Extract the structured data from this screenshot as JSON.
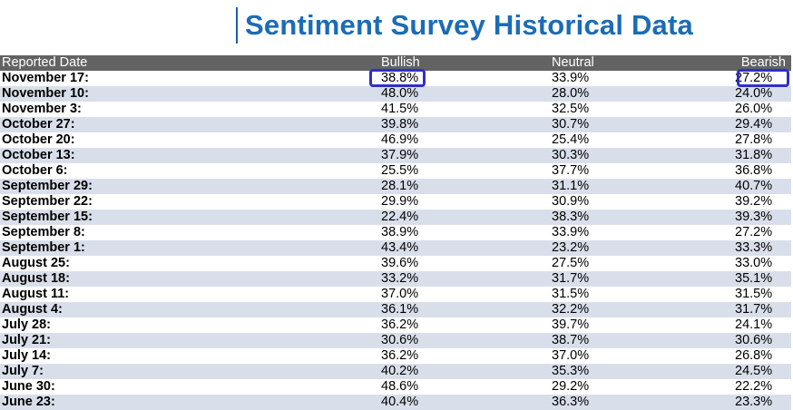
{
  "title": "Sentiment Survey Historical Data",
  "colors": {
    "title": "#1b6cb5",
    "header_bg": "#636363",
    "stripe": "#d9dfea",
    "highlight": "#3030c8"
  },
  "table": {
    "headers": [
      "Reported Date",
      "Bullish",
      "Neutral",
      "Bearish"
    ],
    "rows": [
      [
        "November 17:",
        "38.8%",
        "33.9%",
        "27.2%"
      ],
      [
        "November 10:",
        "48.0%",
        "28.0%",
        "24.0%"
      ],
      [
        "November 3:",
        "41.5%",
        "32.5%",
        "26.0%"
      ],
      [
        "October 27:",
        "39.8%",
        "30.7%",
        "29.4%"
      ],
      [
        "October 20:",
        "46.9%",
        "25.4%",
        "27.8%"
      ],
      [
        "October 13:",
        "37.9%",
        "30.3%",
        "31.8%"
      ],
      [
        "October 6:",
        "25.5%",
        "37.7%",
        "36.8%"
      ],
      [
        "September 29:",
        "28.1%",
        "31.1%",
        "40.7%"
      ],
      [
        "September 22:",
        "29.9%",
        "30.9%",
        "39.2%"
      ],
      [
        "September 15:",
        "22.4%",
        "38.3%",
        "39.3%"
      ],
      [
        "September 8:",
        "38.9%",
        "33.9%",
        "27.2%"
      ],
      [
        "September 1:",
        "43.4%",
        "23.2%",
        "33.3%"
      ],
      [
        "August 25:",
        "39.6%",
        "27.5%",
        "33.0%"
      ],
      [
        "August 18:",
        "33.2%",
        "31.7%",
        "35.1%"
      ],
      [
        "August 11:",
        "37.0%",
        "31.5%",
        "31.5%"
      ],
      [
        "August 4:",
        "36.1%",
        "32.2%",
        "31.7%"
      ],
      [
        "July 28:",
        "36.2%",
        "39.7%",
        "24.1%"
      ],
      [
        "July 21:",
        "30.6%",
        "38.7%",
        "30.6%"
      ],
      [
        "July 14:",
        "36.2%",
        "37.0%",
        "26.8%"
      ],
      [
        "July 7:",
        "40.2%",
        "35.3%",
        "24.5%"
      ],
      [
        "June 30:",
        "48.6%",
        "29.2%",
        "22.2%"
      ],
      [
        "June 23:",
        "40.4%",
        "36.3%",
        "23.3%"
      ]
    ]
  }
}
